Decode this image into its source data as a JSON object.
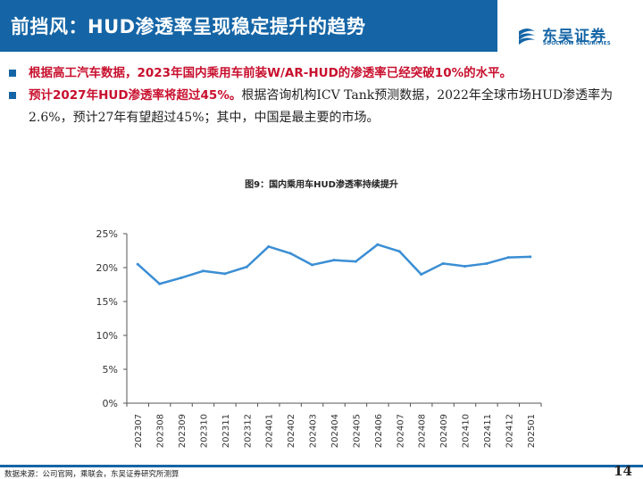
{
  "header": {
    "title": "前挡风：HUD渗透率呈现稳定提升的趋势"
  },
  "logo": {
    "name_cn": "东吴证券",
    "name_en": "SOOCHOW SECURITIES"
  },
  "bullets": [
    {
      "highlight": "根据高工汽车数据，2023年国内乘用车前装W/AR-HUD的渗透率已经突破10%的水平。",
      "text": ""
    },
    {
      "highlight": "预计2027年HUD渗透率将超过45%。",
      "text": "根据咨询机构ICV Tank预测数据，2022年全球市场HUD渗透率为2.6%，预计27年有望超过45%；其中，中国是最主要的市场。"
    }
  ],
  "figure": {
    "title": "图9：国内乘用车HUD渗透率持续提升"
  },
  "footer": {
    "source": "数据来源：公司官网，乘联会，东吴证券研究所测算",
    "page": "14"
  },
  "colors": {
    "brand": "#1565a6",
    "highlight": "#c8102e",
    "line": "#3b8ed4"
  },
  "chart_data": {
    "type": "line",
    "title": "图9：国内乘用车HUD渗透率持续提升",
    "x": [
      "202307",
      "202308",
      "202309",
      "202310",
      "202311",
      "202312",
      "202401",
      "202402",
      "202403",
      "202404",
      "202405",
      "202406",
      "202407",
      "202408",
      "202409",
      "202410",
      "202411",
      "202412",
      "202501"
    ],
    "series": [
      {
        "name": "HUD渗透率",
        "values": [
          20.5,
          17.6,
          18.5,
          19.5,
          19.1,
          20.1,
          23.1,
          22.1,
          20.4,
          21.1,
          20.9,
          23.4,
          22.4,
          19.0,
          20.6,
          20.2,
          20.6,
          21.5,
          21.6
        ]
      }
    ],
    "yticks": [
      "0%",
      "5%",
      "10%",
      "15%",
      "20%",
      "25%"
    ],
    "ylim": [
      0,
      25
    ],
    "xlabel": "",
    "ylabel": "",
    "grid": false,
    "legend": "none"
  }
}
